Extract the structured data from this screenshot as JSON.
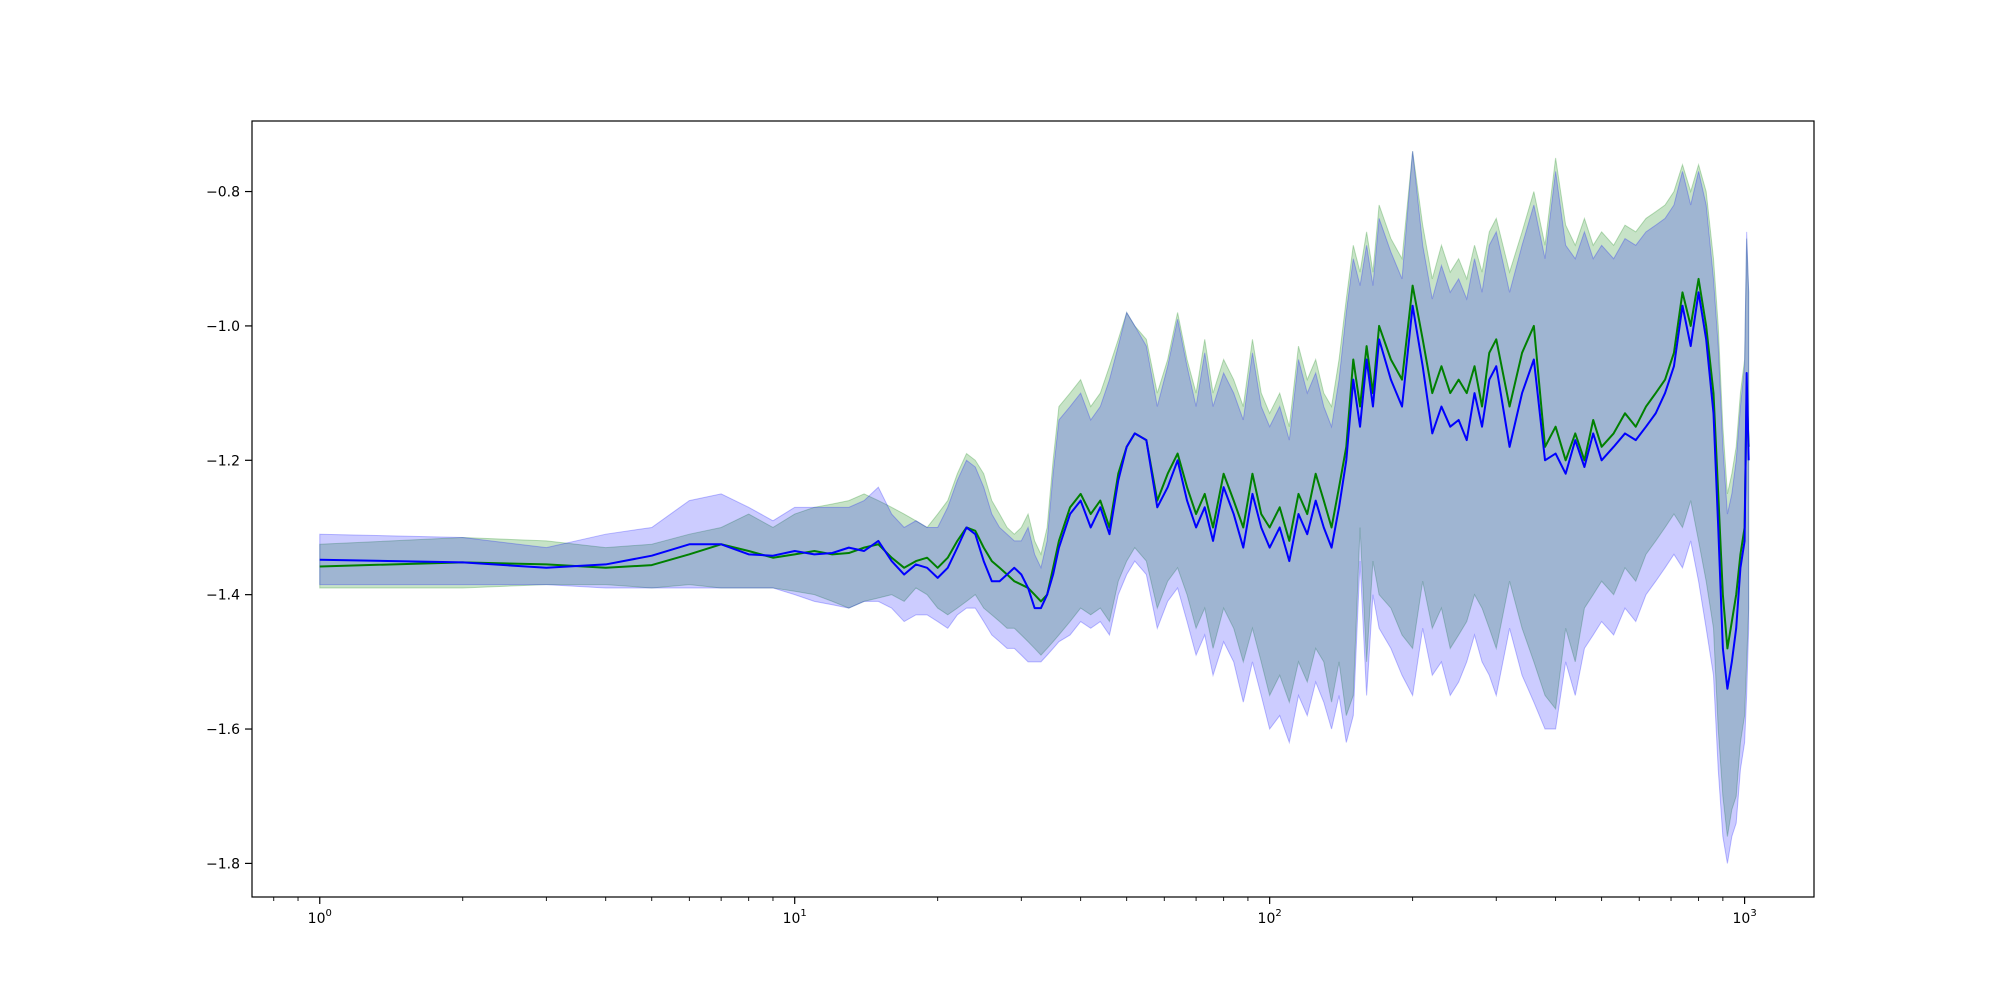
{
  "chart_data": {
    "type": "line",
    "title": "",
    "xlabel": "",
    "ylabel": "",
    "x_scale": "log",
    "xlim": [
      0.72,
      1400
    ],
    "ylim": [
      -1.85,
      -0.695
    ],
    "grid": false,
    "legend": "none",
    "x_ticks": [
      {
        "value": 1,
        "base": "10",
        "exp": "0"
      },
      {
        "value": 10,
        "base": "10",
        "exp": "1"
      },
      {
        "value": 100,
        "base": "10",
        "exp": "2"
      },
      {
        "value": 1000,
        "base": "10",
        "exp": "3"
      }
    ],
    "y_ticks": [
      {
        "value": -1.8,
        "label": "−1.8"
      },
      {
        "value": -1.6,
        "label": "−1.6"
      },
      {
        "value": -1.4,
        "label": "−1.4"
      },
      {
        "value": -1.2,
        "label": "−1.2"
      },
      {
        "value": -1.0,
        "label": "−1.0"
      },
      {
        "value": -0.8,
        "label": "−0.8"
      }
    ],
    "x": [
      1,
      2,
      3,
      4,
      5,
      6,
      7,
      8,
      9,
      10,
      11,
      12,
      13,
      14,
      15,
      16,
      17,
      18,
      19,
      20,
      21,
      22,
      23,
      24,
      25,
      26,
      27,
      28,
      29,
      30,
      31,
      32,
      33,
      34,
      35,
      36,
      38,
      40,
      42,
      44,
      46,
      48,
      50,
      52,
      55,
      58,
      61,
      64,
      67,
      70,
      73,
      76,
      80,
      84,
      88,
      92,
      96,
      100,
      105,
      110,
      115,
      120,
      125,
      130,
      135,
      140,
      145,
      150,
      155,
      160,
      165,
      170,
      180,
      190,
      200,
      210,
      220,
      230,
      240,
      250,
      260,
      270,
      280,
      290,
      300,
      320,
      340,
      360,
      380,
      400,
      420,
      440,
      460,
      480,
      500,
      530,
      560,
      590,
      620,
      650,
      680,
      710,
      740,
      770,
      800,
      830,
      860,
      880,
      900,
      920,
      940,
      960,
      980,
      1000,
      1010,
      1020
    ],
    "series": [
      {
        "color": "#008000",
        "band_color": "#008000",
        "band_opacity": 0.22,
        "values": [
          -1.358,
          -1.352,
          -1.355,
          -1.36,
          -1.356,
          -1.34,
          -1.325,
          -1.335,
          -1.345,
          -1.34,
          -1.335,
          -1.34,
          -1.338,
          -1.33,
          -1.325,
          -1.345,
          -1.36,
          -1.35,
          -1.345,
          -1.36,
          -1.345,
          -1.32,
          -1.3,
          -1.305,
          -1.33,
          -1.35,
          -1.36,
          -1.37,
          -1.38,
          -1.385,
          -1.39,
          -1.4,
          -1.41,
          -1.4,
          -1.36,
          -1.32,
          -1.27,
          -1.25,
          -1.28,
          -1.26,
          -1.3,
          -1.22,
          -1.18,
          -1.16,
          -1.17,
          -1.26,
          -1.22,
          -1.19,
          -1.24,
          -1.28,
          -1.25,
          -1.3,
          -1.22,
          -1.26,
          -1.3,
          -1.22,
          -1.28,
          -1.3,
          -1.27,
          -1.32,
          -1.25,
          -1.28,
          -1.22,
          -1.26,
          -1.3,
          -1.24,
          -1.18,
          -1.05,
          -1.12,
          -1.03,
          -1.1,
          -1.0,
          -1.05,
          -1.08,
          -0.94,
          -1.02,
          -1.1,
          -1.06,
          -1.1,
          -1.08,
          -1.1,
          -1.06,
          -1.12,
          -1.04,
          -1.02,
          -1.12,
          -1.04,
          -1.0,
          -1.18,
          -1.15,
          -1.2,
          -1.16,
          -1.2,
          -1.14,
          -1.18,
          -1.16,
          -1.13,
          -1.15,
          -1.12,
          -1.1,
          -1.08,
          -1.04,
          -0.95,
          -1.0,
          -0.93,
          -1.0,
          -1.1,
          -1.25,
          -1.4,
          -1.48,
          -1.44,
          -1.4,
          -1.34,
          -1.3,
          -1.1,
          -1.18
        ],
        "lower": [
          -1.39,
          -1.39,
          -1.385,
          -1.385,
          -1.39,
          -1.385,
          -1.39,
          -1.39,
          -1.39,
          -1.395,
          -1.4,
          -1.41,
          -1.42,
          -1.41,
          -1.405,
          -1.4,
          -1.41,
          -1.39,
          -1.4,
          -1.42,
          -1.43,
          -1.42,
          -1.41,
          -1.4,
          -1.42,
          -1.43,
          -1.44,
          -1.45,
          -1.45,
          -1.46,
          -1.47,
          -1.48,
          -1.49,
          -1.48,
          -1.47,
          -1.46,
          -1.44,
          -1.42,
          -1.43,
          -1.42,
          -1.44,
          -1.38,
          -1.35,
          -1.33,
          -1.35,
          -1.42,
          -1.38,
          -1.36,
          -1.4,
          -1.45,
          -1.42,
          -1.48,
          -1.42,
          -1.45,
          -1.5,
          -1.45,
          -1.5,
          -1.55,
          -1.52,
          -1.56,
          -1.5,
          -1.53,
          -1.48,
          -1.5,
          -1.56,
          -1.5,
          -1.58,
          -1.55,
          -1.3,
          -1.5,
          -1.35,
          -1.4,
          -1.42,
          -1.46,
          -1.48,
          -1.38,
          -1.45,
          -1.42,
          -1.48,
          -1.46,
          -1.44,
          -1.4,
          -1.42,
          -1.45,
          -1.48,
          -1.38,
          -1.45,
          -1.5,
          -1.55,
          -1.57,
          -1.45,
          -1.5,
          -1.42,
          -1.4,
          -1.38,
          -1.4,
          -1.36,
          -1.38,
          -1.34,
          -1.32,
          -1.3,
          -1.28,
          -1.3,
          -1.26,
          -1.32,
          -1.38,
          -1.45,
          -1.6,
          -1.7,
          -1.76,
          -1.72,
          -1.7,
          -1.62,
          -1.58,
          -1.5,
          -1.42
        ],
        "upper": [
          -1.325,
          -1.315,
          -1.32,
          -1.33,
          -1.325,
          -1.31,
          -1.3,
          -1.28,
          -1.3,
          -1.28,
          -1.27,
          -1.265,
          -1.26,
          -1.25,
          -1.26,
          -1.27,
          -1.28,
          -1.29,
          -1.3,
          -1.28,
          -1.26,
          -1.22,
          -1.19,
          -1.2,
          -1.22,
          -1.26,
          -1.28,
          -1.3,
          -1.31,
          -1.3,
          -1.28,
          -1.32,
          -1.34,
          -1.3,
          -1.2,
          -1.12,
          -1.1,
          -1.08,
          -1.12,
          -1.1,
          -1.06,
          -1.02,
          -0.98,
          -1.0,
          -1.02,
          -1.1,
          -1.05,
          -0.98,
          -1.05,
          -1.1,
          -1.02,
          -1.1,
          -1.05,
          -1.08,
          -1.12,
          -1.02,
          -1.1,
          -1.13,
          -1.1,
          -1.15,
          -1.03,
          -1.08,
          -1.05,
          -1.1,
          -1.12,
          -1.05,
          -0.96,
          -0.88,
          -0.92,
          -0.86,
          -0.92,
          -0.82,
          -0.87,
          -0.9,
          -0.74,
          -0.85,
          -0.93,
          -0.88,
          -0.92,
          -0.9,
          -0.93,
          -0.88,
          -0.92,
          -0.86,
          -0.84,
          -0.92,
          -0.86,
          -0.8,
          -0.88,
          -0.75,
          -0.85,
          -0.88,
          -0.84,
          -0.88,
          -0.86,
          -0.88,
          -0.85,
          -0.86,
          -0.84,
          -0.83,
          -0.82,
          -0.8,
          -0.76,
          -0.8,
          -0.76,
          -0.8,
          -0.9,
          -1.0,
          -1.15,
          -1.25,
          -1.22,
          -1.18,
          -1.1,
          -1.05,
          -0.87,
          -0.95
        ]
      },
      {
        "color": "#0000ff",
        "band_color": "#0000ff",
        "band_opacity": 0.2,
        "values": [
          -1.348,
          -1.352,
          -1.36,
          -1.355,
          -1.342,
          -1.325,
          -1.325,
          -1.34,
          -1.342,
          -1.335,
          -1.34,
          -1.338,
          -1.33,
          -1.335,
          -1.32,
          -1.35,
          -1.37,
          -1.355,
          -1.36,
          -1.375,
          -1.36,
          -1.33,
          -1.3,
          -1.31,
          -1.35,
          -1.38,
          -1.38,
          -1.37,
          -1.36,
          -1.37,
          -1.39,
          -1.42,
          -1.42,
          -1.4,
          -1.37,
          -1.33,
          -1.28,
          -1.26,
          -1.3,
          -1.27,
          -1.31,
          -1.23,
          -1.18,
          -1.16,
          -1.17,
          -1.27,
          -1.24,
          -1.2,
          -1.26,
          -1.3,
          -1.27,
          -1.32,
          -1.24,
          -1.28,
          -1.33,
          -1.25,
          -1.3,
          -1.33,
          -1.3,
          -1.35,
          -1.28,
          -1.31,
          -1.26,
          -1.3,
          -1.33,
          -1.27,
          -1.2,
          -1.08,
          -1.15,
          -1.05,
          -1.12,
          -1.02,
          -1.08,
          -1.12,
          -0.97,
          -1.06,
          -1.16,
          -1.12,
          -1.15,
          -1.14,
          -1.17,
          -1.1,
          -1.15,
          -1.08,
          -1.06,
          -1.18,
          -1.1,
          -1.05,
          -1.2,
          -1.19,
          -1.22,
          -1.17,
          -1.21,
          -1.16,
          -1.2,
          -1.18,
          -1.16,
          -1.17,
          -1.15,
          -1.13,
          -1.1,
          -1.06,
          -0.97,
          -1.03,
          -0.95,
          -1.02,
          -1.13,
          -1.3,
          -1.48,
          -1.54,
          -1.5,
          -1.45,
          -1.36,
          -1.32,
          -1.07,
          -1.2
        ],
        "lower": [
          -1.385,
          -1.385,
          -1.385,
          -1.39,
          -1.39,
          -1.39,
          -1.39,
          -1.39,
          -1.39,
          -1.4,
          -1.41,
          -1.415,
          -1.42,
          -1.41,
          -1.41,
          -1.42,
          -1.44,
          -1.43,
          -1.43,
          -1.44,
          -1.45,
          -1.43,
          -1.42,
          -1.42,
          -1.44,
          -1.46,
          -1.47,
          -1.48,
          -1.48,
          -1.49,
          -1.5,
          -1.5,
          -1.5,
          -1.49,
          -1.48,
          -1.47,
          -1.46,
          -1.44,
          -1.45,
          -1.44,
          -1.46,
          -1.4,
          -1.37,
          -1.35,
          -1.37,
          -1.45,
          -1.41,
          -1.39,
          -1.44,
          -1.49,
          -1.46,
          -1.52,
          -1.47,
          -1.5,
          -1.56,
          -1.5,
          -1.55,
          -1.6,
          -1.58,
          -1.62,
          -1.55,
          -1.58,
          -1.53,
          -1.56,
          -1.6,
          -1.55,
          -1.62,
          -1.58,
          -1.35,
          -1.55,
          -1.4,
          -1.45,
          -1.48,
          -1.52,
          -1.55,
          -1.45,
          -1.52,
          -1.5,
          -1.55,
          -1.53,
          -1.5,
          -1.46,
          -1.5,
          -1.52,
          -1.55,
          -1.45,
          -1.52,
          -1.56,
          -1.6,
          -1.6,
          -1.5,
          -1.55,
          -1.48,
          -1.46,
          -1.44,
          -1.46,
          -1.42,
          -1.44,
          -1.4,
          -1.38,
          -1.36,
          -1.34,
          -1.36,
          -1.32,
          -1.38,
          -1.45,
          -1.52,
          -1.66,
          -1.76,
          -1.8,
          -1.76,
          -1.74,
          -1.66,
          -1.62,
          -1.55,
          -1.45
        ],
        "upper": [
          -1.31,
          -1.315,
          -1.33,
          -1.31,
          -1.3,
          -1.26,
          -1.25,
          -1.27,
          -1.29,
          -1.27,
          -1.27,
          -1.27,
          -1.27,
          -1.26,
          -1.24,
          -1.28,
          -1.3,
          -1.29,
          -1.3,
          -1.3,
          -1.27,
          -1.23,
          -1.2,
          -1.21,
          -1.24,
          -1.28,
          -1.3,
          -1.31,
          -1.32,
          -1.32,
          -1.3,
          -1.34,
          -1.36,
          -1.32,
          -1.22,
          -1.14,
          -1.12,
          -1.1,
          -1.14,
          -1.12,
          -1.08,
          -1.03,
          -0.98,
          -1.0,
          -1.03,
          -1.12,
          -1.06,
          -0.99,
          -1.06,
          -1.12,
          -1.04,
          -1.12,
          -1.07,
          -1.1,
          -1.14,
          -1.04,
          -1.12,
          -1.15,
          -1.12,
          -1.17,
          -1.05,
          -1.1,
          -1.07,
          -1.12,
          -1.15,
          -1.08,
          -0.98,
          -0.9,
          -0.94,
          -0.88,
          -0.94,
          -0.84,
          -0.89,
          -0.93,
          -0.74,
          -0.88,
          -0.96,
          -0.91,
          -0.95,
          -0.93,
          -0.96,
          -0.9,
          -0.95,
          -0.88,
          -0.86,
          -0.95,
          -0.88,
          -0.82,
          -0.9,
          -0.77,
          -0.88,
          -0.9,
          -0.86,
          -0.9,
          -0.88,
          -0.9,
          -0.87,
          -0.88,
          -0.86,
          -0.85,
          -0.84,
          -0.82,
          -0.77,
          -0.82,
          -0.77,
          -0.82,
          -0.93,
          -1.03,
          -1.18,
          -1.28,
          -1.25,
          -1.2,
          -1.12,
          -1.06,
          -0.86,
          -0.95
        ]
      }
    ]
  }
}
